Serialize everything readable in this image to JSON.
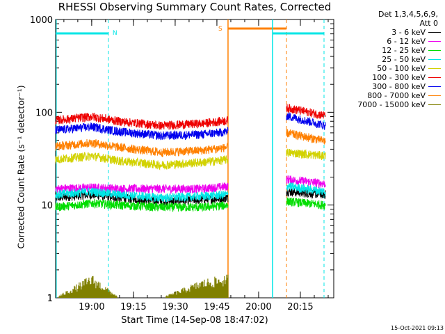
{
  "chart_data": {
    "type": "line",
    "title": "RHESSI Observing Summary Count Rates, Corrected",
    "xlabel": "Start Time (14-Sep-08 18:47:02)",
    "ylabel": "Corrected Count Rate (s⁻¹ detector⁻¹)",
    "y_scale": "log",
    "ylim": [
      1,
      1000
    ],
    "y_ticks": [
      1,
      10,
      100,
      1000
    ],
    "y_tick_labels": [
      "1",
      "10",
      "100",
      "1000"
    ],
    "x_ticks": [
      "19:00",
      "19:15",
      "19:30",
      "19:45",
      "20:00",
      "20:15"
    ],
    "xlim": [
      "18:47:02",
      "20:27:00"
    ],
    "legend_header": [
      "Det 1,3,4,5,6,9,",
      "Att 0"
    ],
    "legend_position": "outside-right",
    "series": [
      {
        "name": "3 - 6 keV",
        "color": "#000000",
        "x": [
          "18:47",
          "19:00",
          "19:10",
          "19:25",
          "19:40",
          "19:49"
        ],
        "values": [
          12,
          13,
          12,
          11,
          11.5,
          12
        ],
        "x2": [
          "20:10",
          "20:24"
        ],
        "values2": [
          14,
          13
        ]
      },
      {
        "name": "6 - 12 keV",
        "color": "#ee00ee",
        "x": [
          "18:47",
          "19:00",
          "19:10",
          "19:25",
          "19:40",
          "19:49"
        ],
        "values": [
          15,
          15.5,
          15,
          15,
          15,
          16
        ],
        "x2": [
          "20:10",
          "20:24"
        ],
        "values2": [
          19,
          17
        ]
      },
      {
        "name": "12 - 25 keV",
        "color": "#00dd00",
        "x": [
          "18:47",
          "19:00",
          "19:10",
          "19:25",
          "19:40",
          "19:49"
        ],
        "values": [
          9.5,
          10.5,
          10,
          9.5,
          9.5,
          10
        ],
        "x2": [
          "20:10",
          "20:24"
        ],
        "values2": [
          11,
          10
        ]
      },
      {
        "name": "25 - 50 keV",
        "color": "#00e6e6",
        "x": [
          "18:47",
          "19:00",
          "19:10",
          "19:25",
          "19:40",
          "19:49"
        ],
        "values": [
          13,
          14,
          13,
          12,
          12.5,
          13
        ],
        "x2": [
          "20:10",
          "20:24"
        ],
        "values2": [
          16,
          14
        ]
      },
      {
        "name": "50 - 100 keV",
        "color": "#d2d200",
        "x": [
          "18:47",
          "19:00",
          "19:10",
          "19:25",
          "19:40",
          "19:49"
        ],
        "values": [
          31,
          34,
          30,
          27,
          29,
          31
        ],
        "x2": [
          "20:10",
          "20:24"
        ],
        "values2": [
          37,
          34
        ]
      },
      {
        "name": "100 - 300 keV",
        "color": "#ee0000",
        "x": [
          "18:47",
          "19:00",
          "19:10",
          "19:25",
          "19:40",
          "19:49"
        ],
        "values": [
          82,
          90,
          80,
          72,
          76,
          82
        ],
        "x2": [
          "20:10",
          "20:24"
        ],
        "values2": [
          112,
          92
        ]
      },
      {
        "name": "300 - 800 keV",
        "color": "#0000ee",
        "x": [
          "18:47",
          "19:00",
          "19:10",
          "19:25",
          "19:40",
          "19:49"
        ],
        "values": [
          64,
          70,
          62,
          56,
          58,
          62
        ],
        "x2": [
          "20:10",
          "20:24"
        ],
        "values2": [
          92,
          72
        ]
      },
      {
        "name": "800 - 7000 keV",
        "color": "#ff8000",
        "x": [
          "18:47",
          "19:00",
          "19:10",
          "19:25",
          "19:40",
          "19:49"
        ],
        "values": [
          43,
          47,
          42,
          37,
          39,
          42
        ],
        "x2": [
          "20:10",
          "20:24"
        ],
        "values2": [
          60,
          49
        ]
      },
      {
        "name": "7000 - 15000 keV",
        "color": "#808000",
        "x": [
          "18:47",
          "19:00",
          "19:10",
          "19:25",
          "19:40",
          "19:49"
        ],
        "values": [
          1,
          1.8,
          1,
          1,
          1.6,
          1.8
        ],
        "x2": [],
        "values2": []
      }
    ],
    "annotations": [
      {
        "label": "N",
        "color": "#00e6e6",
        "start": "18:47",
        "end": "19:06"
      },
      {
        "label": "S",
        "color": "#ff8000",
        "start": "19:49",
        "end": "20:10"
      }
    ],
    "grid": false
  },
  "timestamp": "15-Oct-2021 09:13"
}
